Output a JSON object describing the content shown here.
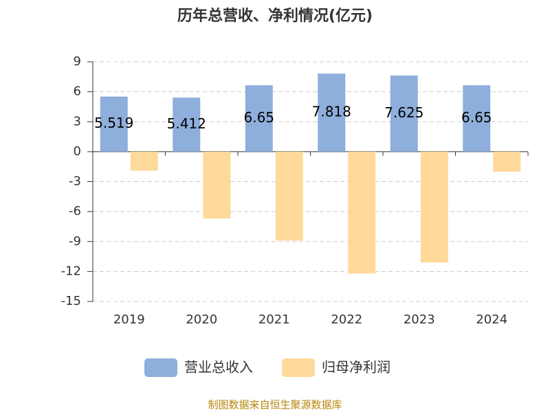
{
  "chart_data": {
    "type": "bar",
    "title": "历年总营收、净利情况(亿元)",
    "categories": [
      "2019",
      "2020",
      "2021",
      "2022",
      "2023",
      "2024"
    ],
    "series": [
      {
        "name": "营业总收入",
        "color": "#8eaedb",
        "values": [
          5.519,
          5.412,
          6.65,
          7.818,
          7.625,
          6.65
        ]
      },
      {
        "name": "归母净利润",
        "color": "#ffd999",
        "values": [
          -1.9,
          -6.7,
          -8.9,
          -12.2,
          -11.1,
          -2.0
        ]
      }
    ],
    "ylim": [
      -15,
      9
    ],
    "yticks": [
      -15,
      -12,
      -9,
      -6,
      -3,
      0,
      3,
      6,
      9
    ],
    "grid": true,
    "legend": "bottom",
    "source": "制图数据来自恒生聚源数据库"
  }
}
